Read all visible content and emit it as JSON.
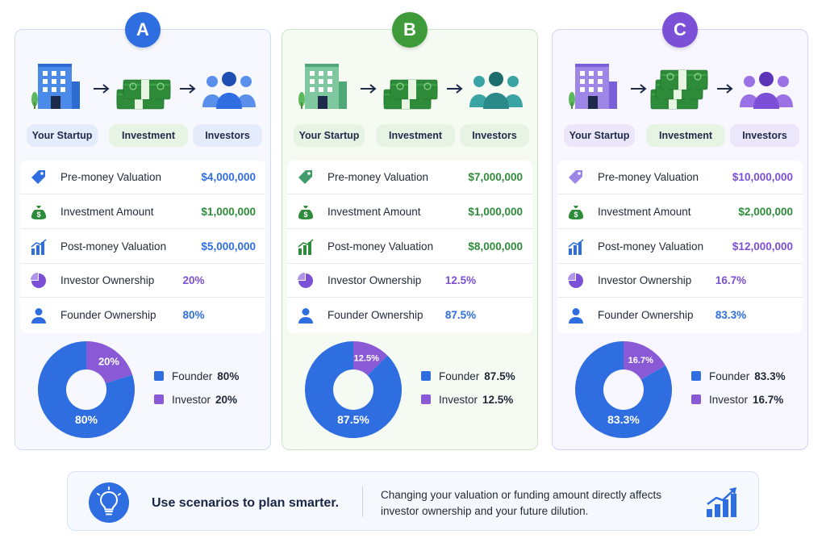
{
  "scenarios": [
    {
      "letter": "A",
      "accent": "#2f6ee0",
      "flow": {
        "startup": "Your Startup",
        "investment": "Investment",
        "investors": "Investors"
      },
      "rows": [
        {
          "label": "Pre-money Valuation",
          "value": "$4,000,000",
          "icon": "price-tag-icon"
        },
        {
          "label": "Investment Amount",
          "value": "$1,000,000",
          "icon": "money-bag-icon"
        },
        {
          "label": "Post-money Valuation",
          "value": "$5,000,000",
          "icon": "bar-growth-icon"
        },
        {
          "label": "Investor Ownership",
          "value": "20%",
          "icon": "pie-icon"
        },
        {
          "label": "Founder Ownership",
          "value": "80%",
          "icon": "person-icon"
        }
      ],
      "chart": {
        "founder_label": "80%",
        "investor_label": "20%"
      },
      "legend": {
        "founder": "Founder",
        "founder_pct": "80%",
        "investor": "Investor",
        "investor_pct": "20%"
      }
    },
    {
      "letter": "B",
      "accent": "#3f9b3a",
      "flow": {
        "startup": "Your Startup",
        "investment": "Investment",
        "investors": "Investors"
      },
      "rows": [
        {
          "label": "Pre-money Valuation",
          "value": "$7,000,000",
          "icon": "price-tag-icon"
        },
        {
          "label": "Investment Amount",
          "value": "$1,000,000",
          "icon": "money-bag-icon"
        },
        {
          "label": "Post-money Valuation",
          "value": "$8,000,000",
          "icon": "bar-growth-icon"
        },
        {
          "label": "Investor Ownership",
          "value": "12.5%",
          "icon": "pie-icon"
        },
        {
          "label": "Founder Ownership",
          "value": "87.5%",
          "icon": "person-icon"
        }
      ],
      "chart": {
        "founder_label": "87.5%",
        "investor_label": "12.5%"
      },
      "legend": {
        "founder": "Founder",
        "founder_pct": "87.5%",
        "investor": "Investor",
        "investor_pct": "12.5%"
      }
    },
    {
      "letter": "C",
      "accent": "#7b4fd6",
      "flow": {
        "startup": "Your Startup",
        "investment": "Investment",
        "investors": "Investors"
      },
      "rows": [
        {
          "label": "Pre-money Valuation",
          "value": "$10,000,000",
          "icon": "price-tag-icon"
        },
        {
          "label": "Investment Amount",
          "value": "$2,000,000",
          "icon": "money-bag-icon"
        },
        {
          "label": "Post-money Valuation",
          "value": "$12,000,000",
          "icon": "bar-growth-icon"
        },
        {
          "label": "Investor Ownership",
          "value": "16.7%",
          "icon": "pie-icon"
        },
        {
          "label": "Founder Ownership",
          "value": "83.3%",
          "icon": "person-icon"
        }
      ],
      "chart": {
        "founder_label": "83.3%",
        "investor_label": "16.7%"
      },
      "legend": {
        "founder": "Founder",
        "founder_pct": "83.3%",
        "investor": "Investor",
        "investor_pct": "16.7%"
      }
    }
  ],
  "chart_data": [
    {
      "type": "pie",
      "categories": [
        "Founder",
        "Investor"
      ],
      "values": [
        80,
        20
      ],
      "colors": [
        "#2f6ee0",
        "#8a5ad6"
      ]
    },
    {
      "type": "pie",
      "categories": [
        "Founder",
        "Investor"
      ],
      "values": [
        87.5,
        12.5
      ],
      "colors": [
        "#2f6ee0",
        "#8a5ad6"
      ]
    },
    {
      "type": "pie",
      "categories": [
        "Founder",
        "Investor"
      ],
      "values": [
        83.3,
        16.7
      ],
      "colors": [
        "#2f6ee0",
        "#8a5ad6"
      ]
    }
  ],
  "colors": {
    "founder": "#2f6ee0",
    "investor": "#8a5ad6",
    "money_green": "#2e8b3a",
    "blue_value": "#2f6ee0",
    "green_value": "#2e8b3a",
    "purple_value": "#7b4fd6"
  },
  "tip": {
    "headline": "Use scenarios to plan smarter.",
    "line1": "Changing your valuation or funding amount directly affects",
    "line2": "investor ownership and your future dilution.",
    "icon": "lightbulb-icon",
    "chart_icon": "growth-chart-icon"
  }
}
